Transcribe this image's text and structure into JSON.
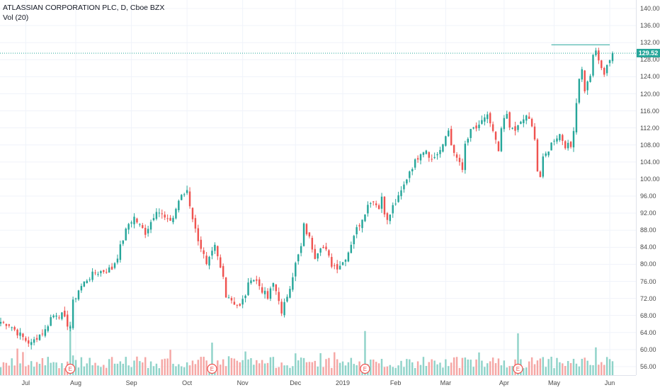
{
  "legend": {
    "title": "ATLASSIAN CORPORATION PLC, D, Cboe BZX",
    "volume": "Vol (20)"
  },
  "colors": {
    "up": "#26a69a",
    "down": "#ef5350",
    "volume_up": "#8fd3c9",
    "volume_down": "#f5a7a5",
    "grid": "#f0f3fa",
    "last_price_line": "#26a69a"
  },
  "chart_data": {
    "type": "candlestick",
    "title": "ATLASSIAN CORPORATION PLC, D, Cboe BZX",
    "xlabel": "",
    "ylabel": "",
    "ylim": [
      54,
      142
    ],
    "y_ticks": [
      56.0,
      60.0,
      64.0,
      68.0,
      72.0,
      76.0,
      80.0,
      84.0,
      88.0,
      92.0,
      96.0,
      100.0,
      104.0,
      108.0,
      112.0,
      116.0,
      120.0,
      124.0,
      128.0,
      132.0,
      136.0,
      140.0
    ],
    "y_tick_labels": [
      "56.00",
      "60.00",
      "64.00",
      "68.00",
      "72.00",
      "76.00",
      "80.00",
      "84.00",
      "88.00",
      "92.00",
      "96.00",
      "100.00",
      "104.00",
      "108.00",
      "112.00",
      "116.00",
      "120.00",
      "124.00",
      "128.00",
      "132.00",
      "136.00",
      "140.00"
    ],
    "x_tick_labels": [
      "Jul",
      "Aug",
      "Sep",
      "Oct",
      "Nov",
      "Dec",
      "2019",
      "Feb",
      "Mar",
      "Apr",
      "May",
      "Jun"
    ],
    "x_tick_index": [
      9,
      27,
      47,
      67,
      87,
      106,
      123,
      142,
      160,
      181,
      199,
      219
    ],
    "last_price": 129.52,
    "last_price_label": "129.52",
    "resistance_level": 131.5,
    "resistance_range": [
      198,
      219
    ],
    "earnings_marker_label": "E",
    "earnings_marker_index": [
      25,
      76,
      131,
      186
    ],
    "grid": true,
    "price_path": [
      [
        0,
        66.5
      ],
      [
        3,
        66.0
      ],
      [
        6,
        64.0
      ],
      [
        9,
        62.2
      ],
      [
        11,
        61.3
      ],
      [
        13,
        63.0
      ],
      [
        16,
        64.5
      ],
      [
        18,
        67.5
      ],
      [
        20,
        68.5
      ],
      [
        22,
        68.0
      ],
      [
        24,
        66.0
      ],
      [
        25,
        65.5
      ],
      [
        26,
        71.0
      ],
      [
        28,
        74.0
      ],
      [
        31,
        76.5
      ],
      [
        34,
        78.0
      ],
      [
        37,
        78.5
      ],
      [
        40,
        79.0
      ],
      [
        42,
        82.0
      ],
      [
        44,
        86.0
      ],
      [
        46,
        89.5
      ],
      [
        48,
        91.0
      ],
      [
        50,
        89.0
      ],
      [
        52,
        87.5
      ],
      [
        54,
        90.0
      ],
      [
        56,
        93.0
      ],
      [
        58,
        91.5
      ],
      [
        60,
        90.0
      ],
      [
        62,
        91.0
      ],
      [
        64,
        95.0
      ],
      [
        66,
        96.5
      ],
      [
        67,
        97.5
      ],
      [
        68,
        94.0
      ],
      [
        70,
        88.0
      ],
      [
        72,
        84.0
      ],
      [
        73,
        82.0
      ],
      [
        74,
        79.5
      ],
      [
        75,
        81.0
      ],
      [
        77,
        84.0
      ],
      [
        78,
        81.5
      ],
      [
        79,
        79.0
      ],
      [
        80,
        77.0
      ],
      [
        81,
        73.0
      ],
      [
        82,
        72.5
      ],
      [
        84,
        71.0
      ],
      [
        86,
        70.0
      ],
      [
        88,
        73.0
      ],
      [
        90,
        77.0
      ],
      [
        92,
        76.0
      ],
      [
        94,
        74.0
      ],
      [
        96,
        72.0
      ],
      [
        98,
        75.5
      ],
      [
        100,
        72.0
      ],
      [
        101,
        68.0
      ],
      [
        102,
        70.5
      ],
      [
        104,
        75.0
      ],
      [
        106,
        80.0
      ],
      [
        108,
        84.0
      ],
      [
        109,
        89.0
      ],
      [
        111,
        86.0
      ],
      [
        113,
        82.0
      ],
      [
        115,
        84.5
      ],
      [
        117,
        83.0
      ],
      [
        119,
        80.0
      ],
      [
        121,
        79.5
      ],
      [
        123,
        80.5
      ],
      [
        125,
        83.0
      ],
      [
        127,
        87.0
      ],
      [
        129,
        89.5
      ],
      [
        131,
        92.5
      ],
      [
        133,
        95.0
      ],
      [
        135,
        94.5
      ],
      [
        136,
        93.0
      ],
      [
        137,
        96.0
      ],
      [
        138,
        92.5
      ],
      [
        139,
        90.0
      ],
      [
        141,
        93.5
      ],
      [
        143,
        95.5
      ],
      [
        145,
        98.5
      ],
      [
        147,
        102.0
      ],
      [
        149,
        104.0
      ],
      [
        151,
        106.5
      ],
      [
        153,
        107.0
      ],
      [
        155,
        104.5
      ],
      [
        157,
        106.0
      ],
      [
        159,
        107.5
      ],
      [
        160,
        110.0
      ],
      [
        161,
        111.5
      ],
      [
        163,
        105.5
      ],
      [
        165,
        104.0
      ],
      [
        166,
        101.5
      ],
      [
        167,
        108.0
      ],
      [
        169,
        111.0
      ],
      [
        171,
        112.0
      ],
      [
        173,
        113.5
      ],
      [
        175,
        114.5
      ],
      [
        176,
        113.0
      ],
      [
        177,
        110.5
      ],
      [
        178,
        109.0
      ],
      [
        179,
        106.0
      ],
      [
        180,
        112.0
      ],
      [
        181,
        115.0
      ],
      [
        182,
        114.5
      ],
      [
        183,
        112.0
      ],
      [
        185,
        111.5
      ],
      [
        187,
        113.0
      ],
      [
        189,
        115.0
      ],
      [
        191,
        112.0
      ],
      [
        192,
        110.0
      ],
      [
        193,
        102.0
      ],
      [
        194,
        100.5
      ],
      [
        195,
        104.5
      ],
      [
        197,
        107.0
      ],
      [
        199,
        109.5
      ],
      [
        201,
        110.5
      ],
      [
        203,
        108.0
      ],
      [
        205,
        107.5
      ],
      [
        206,
        112.0
      ],
      [
        207,
        118.0
      ],
      [
        208,
        124.0
      ],
      [
        209,
        125.5
      ],
      [
        210,
        121.0
      ],
      [
        211,
        122.5
      ],
      [
        212,
        124.5
      ],
      [
        213,
        128.5
      ],
      [
        214,
        130.0
      ],
      [
        215,
        128.0
      ],
      [
        216,
        125.5
      ],
      [
        217,
        125.0
      ],
      [
        218,
        127.0
      ],
      [
        219,
        128.0
      ],
      [
        220,
        129.5
      ]
    ],
    "volume_ylim": [
      0,
      25
    ],
    "volume_spikes": [
      {
        "index": 25,
        "value": 23
      },
      {
        "index": 76,
        "value": 14
      },
      {
        "index": 131,
        "value": 19
      },
      {
        "index": 186,
        "value": 18
      }
    ]
  }
}
